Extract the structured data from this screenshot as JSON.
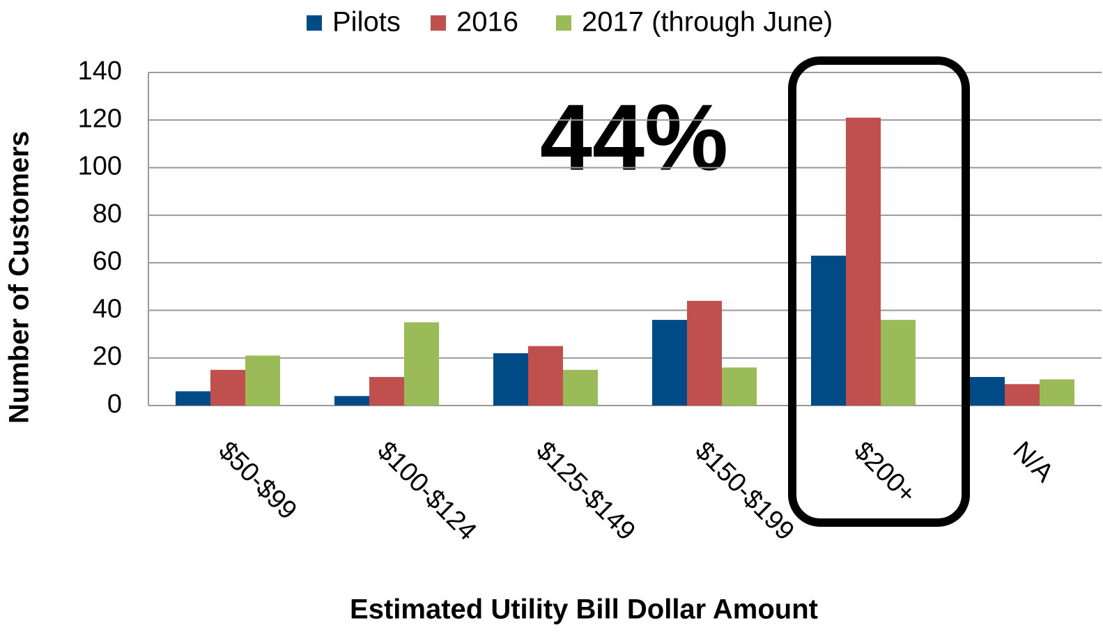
{
  "chart_data": {
    "type": "bar",
    "xlabel": "Estimated Utility Bill Dollar Amount",
    "ylabel": "Number of Customers",
    "annotation": "44%",
    "categories": [
      "$50-$99",
      "$100-$124",
      "$125-$149",
      "$150-$199",
      "$200+",
      "N/A"
    ],
    "series": [
      {
        "name": "Pilots",
        "color": "#004a86",
        "values": [
          6,
          4,
          22,
          36,
          63,
          12
        ]
      },
      {
        "name": "2016",
        "color": "#c0504d",
        "values": [
          15,
          12,
          25,
          44,
          121,
          9
        ]
      },
      {
        "name": "2017 (through June)",
        "color": "#9bbb59",
        "values": [
          21,
          35,
          15,
          16,
          36,
          11
        ]
      }
    ],
    "ylim": [
      0,
      140
    ],
    "yticks": [
      0,
      20,
      40,
      60,
      80,
      100,
      120,
      140
    ],
    "grid": true,
    "legend": "top"
  }
}
